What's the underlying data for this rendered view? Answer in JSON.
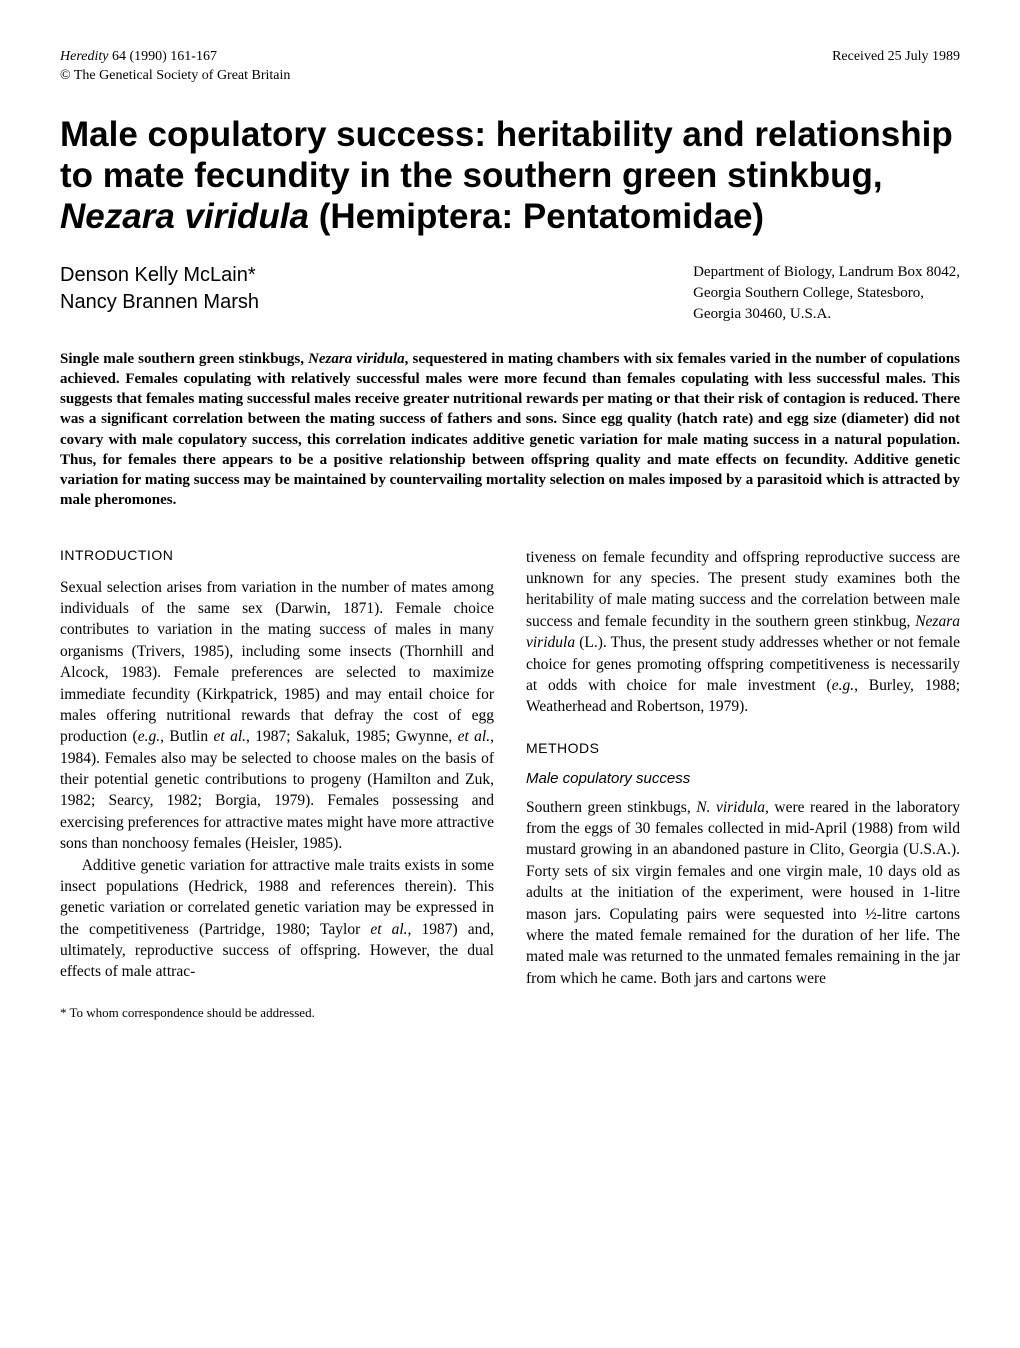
{
  "header": {
    "journal_ref": "Heredity",
    "volume_pages": " 64 (1990) 161-167",
    "copyright": "© The Genetical Society of Great Britain",
    "received": "Received 25 July 1989"
  },
  "title": {
    "line1": "Male copulatory success: heritability and relationship to mate fecundity in the southern green stinkbug, ",
    "species": "Nezara viridula",
    "line2": " (Hemiptera: Pentatomidae)"
  },
  "authors": {
    "a1": "Denson Kelly McLain*",
    "a2": "Nancy Brannen Marsh"
  },
  "affiliation": {
    "l1": "Department of Biology, Landrum Box 8042,",
    "l2": "Georgia Southern College, Statesboro,",
    "l3": "Georgia 30460, U.S.A."
  },
  "abstract": {
    "pre": "Single male southern green stinkbugs, ",
    "species": "Nezara viridula",
    "post": ", sequestered in mating chambers with six females varied in the number of copulations achieved. Females copulating with relatively successful males were more fecund than females copulating with less successful males. This suggests that females mating successful males receive greater nutritional rewards per mating or that their risk of contagion is reduced. There was a significant correlation between the mating success of fathers and sons. Since egg quality (hatch rate) and egg size (diameter) did not covary with male copulatory success, this correlation indicates additive genetic variation for male mating success in a natural population. Thus, for females there appears to be a positive relationship between offspring quality and mate effects on fecundity. Additive genetic variation for mating success may be maintained by countervailing mortality selection on males imposed by a parasitoid which is attracted by male pheromones."
  },
  "left": {
    "heading": "INTRODUCTION",
    "p1a": "Sexual selection arises from variation in the number of mates among individuals of the same sex (Darwin, 1871). Female choice contributes to variation in the mating success of males in many organisms (Trivers, 1985), including some insects (Thornhill and Alcock, 1983). Female preferences are selected to maximize immediate fecundity (Kirkpatrick, 1985) and may entail choice for males offering nutritional rewards that defray the cost of egg production (",
    "p1eg1": "e.g.",
    "p1b": ", Butlin ",
    "p1etal1": "et al.",
    "p1c": ", 1987; Sakaluk, 1985; Gwynne, ",
    "p1etal2": "et al.",
    "p1d": ", 1984). Females also may be selected to choose males on the basis of their potential genetic contributions to progeny (Hamilton and Zuk, 1982; Searcy, 1982; Borgia, 1979). Females possessing and exercising preferences for attractive mates might have more attractive sons than nonchoosy females (Heisler, 1985).",
    "p2a": "Additive genetic variation for attractive male traits exists in some insect populations (Hedrick, 1988 and references therein). This genetic variation or correlated genetic variation may be expressed in the competitiveness (Partridge, 1980; Taylor ",
    "p2etal": "et al.",
    "p2b": ", 1987) and, ultimately, reproductive success of offspring. However, the dual effects of male attrac-"
  },
  "right": {
    "p1a": "tiveness on female fecundity and offspring reproductive success are unknown for any species. The present study examines both the heritability of male mating success and the correlation between male success and female fecundity in the southern green stinkbug, ",
    "p1species": "Nezara viridula",
    "p1b": " (L.). Thus, the present study addresses whether or not female choice for genes promoting offspring competitiveness is necessarily at odds with choice for male investment (",
    "p1eg": "e.g.",
    "p1c": ", Burley, 1988; Weatherhead and Robertson, 1979).",
    "heading": "METHODS",
    "subheading": "Male copulatory success",
    "p2a": "Southern green stinkbugs, ",
    "p2species": "N. viridula,",
    "p2b": " were reared in the laboratory from the eggs of 30 females collected in mid-April (1988) from wild mustard growing in an abandoned pasture in Clito, Georgia (U.S.A.). Forty sets of six virgin females and one virgin male, 10 days old as adults at the initiation of the experiment, were housed in 1-litre mason jars. Copulating pairs were sequested into ½-litre cartons where the mated female remained for the duration of her life. The mated male was returned to the unmated females remaining in the jar from which he came. Both jars and cartons were"
  },
  "footnote": "* To whom correspondence should be addressed."
}
